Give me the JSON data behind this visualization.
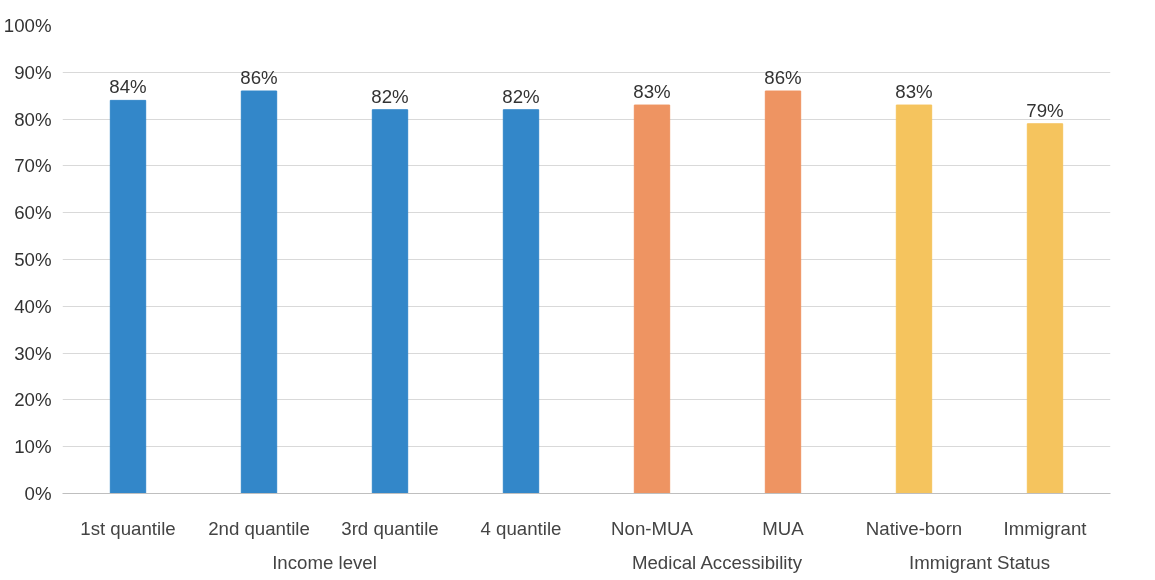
{
  "chart_data": {
    "type": "bar",
    "categories": [
      "1st quantile",
      "2nd quantile",
      "3rd quantile",
      "4 quantile",
      "Non-MUA",
      "MUA",
      "Native-born",
      "Immigrant"
    ],
    "series": [
      {
        "color": "#3387c9",
        "values": [
          84,
          86,
          82,
          82,
          null,
          null,
          null,
          null
        ]
      },
      {
        "color": "#ee9462",
        "values": [
          null,
          null,
          null,
          null,
          83,
          86,
          null,
          null
        ]
      },
      {
        "color": "#f5c45e",
        "values": [
          null,
          null,
          null,
          null,
          null,
          null,
          83,
          79
        ]
      }
    ],
    "annotations": [
      "Income level",
      "Medical Accessibility",
      "Immigrant Status"
    ],
    "ylim": [
      0,
      100
    ],
    "yticks": [
      {
        "value": 0,
        "label": "0%"
      },
      {
        "value": 10,
        "label": "10%"
      },
      {
        "value": 20,
        "label": "20%"
      },
      {
        "value": 30,
        "label": "30%"
      },
      {
        "value": 40,
        "label": "40%"
      },
      {
        "value": 50,
        "label": "50%"
      },
      {
        "value": 60,
        "label": "60%"
      },
      {
        "value": 70,
        "label": "70%"
      },
      {
        "value": 80,
        "label": "80%"
      },
      {
        "value": 90,
        "label": "90%"
      },
      {
        "value": 100,
        "label": "100%"
      }
    ],
    "value_labels": [
      "84%",
      "86%",
      "82%",
      "82%",
      "83%",
      "86%",
      "83%",
      "79%"
    ],
    "grid": "y"
  }
}
